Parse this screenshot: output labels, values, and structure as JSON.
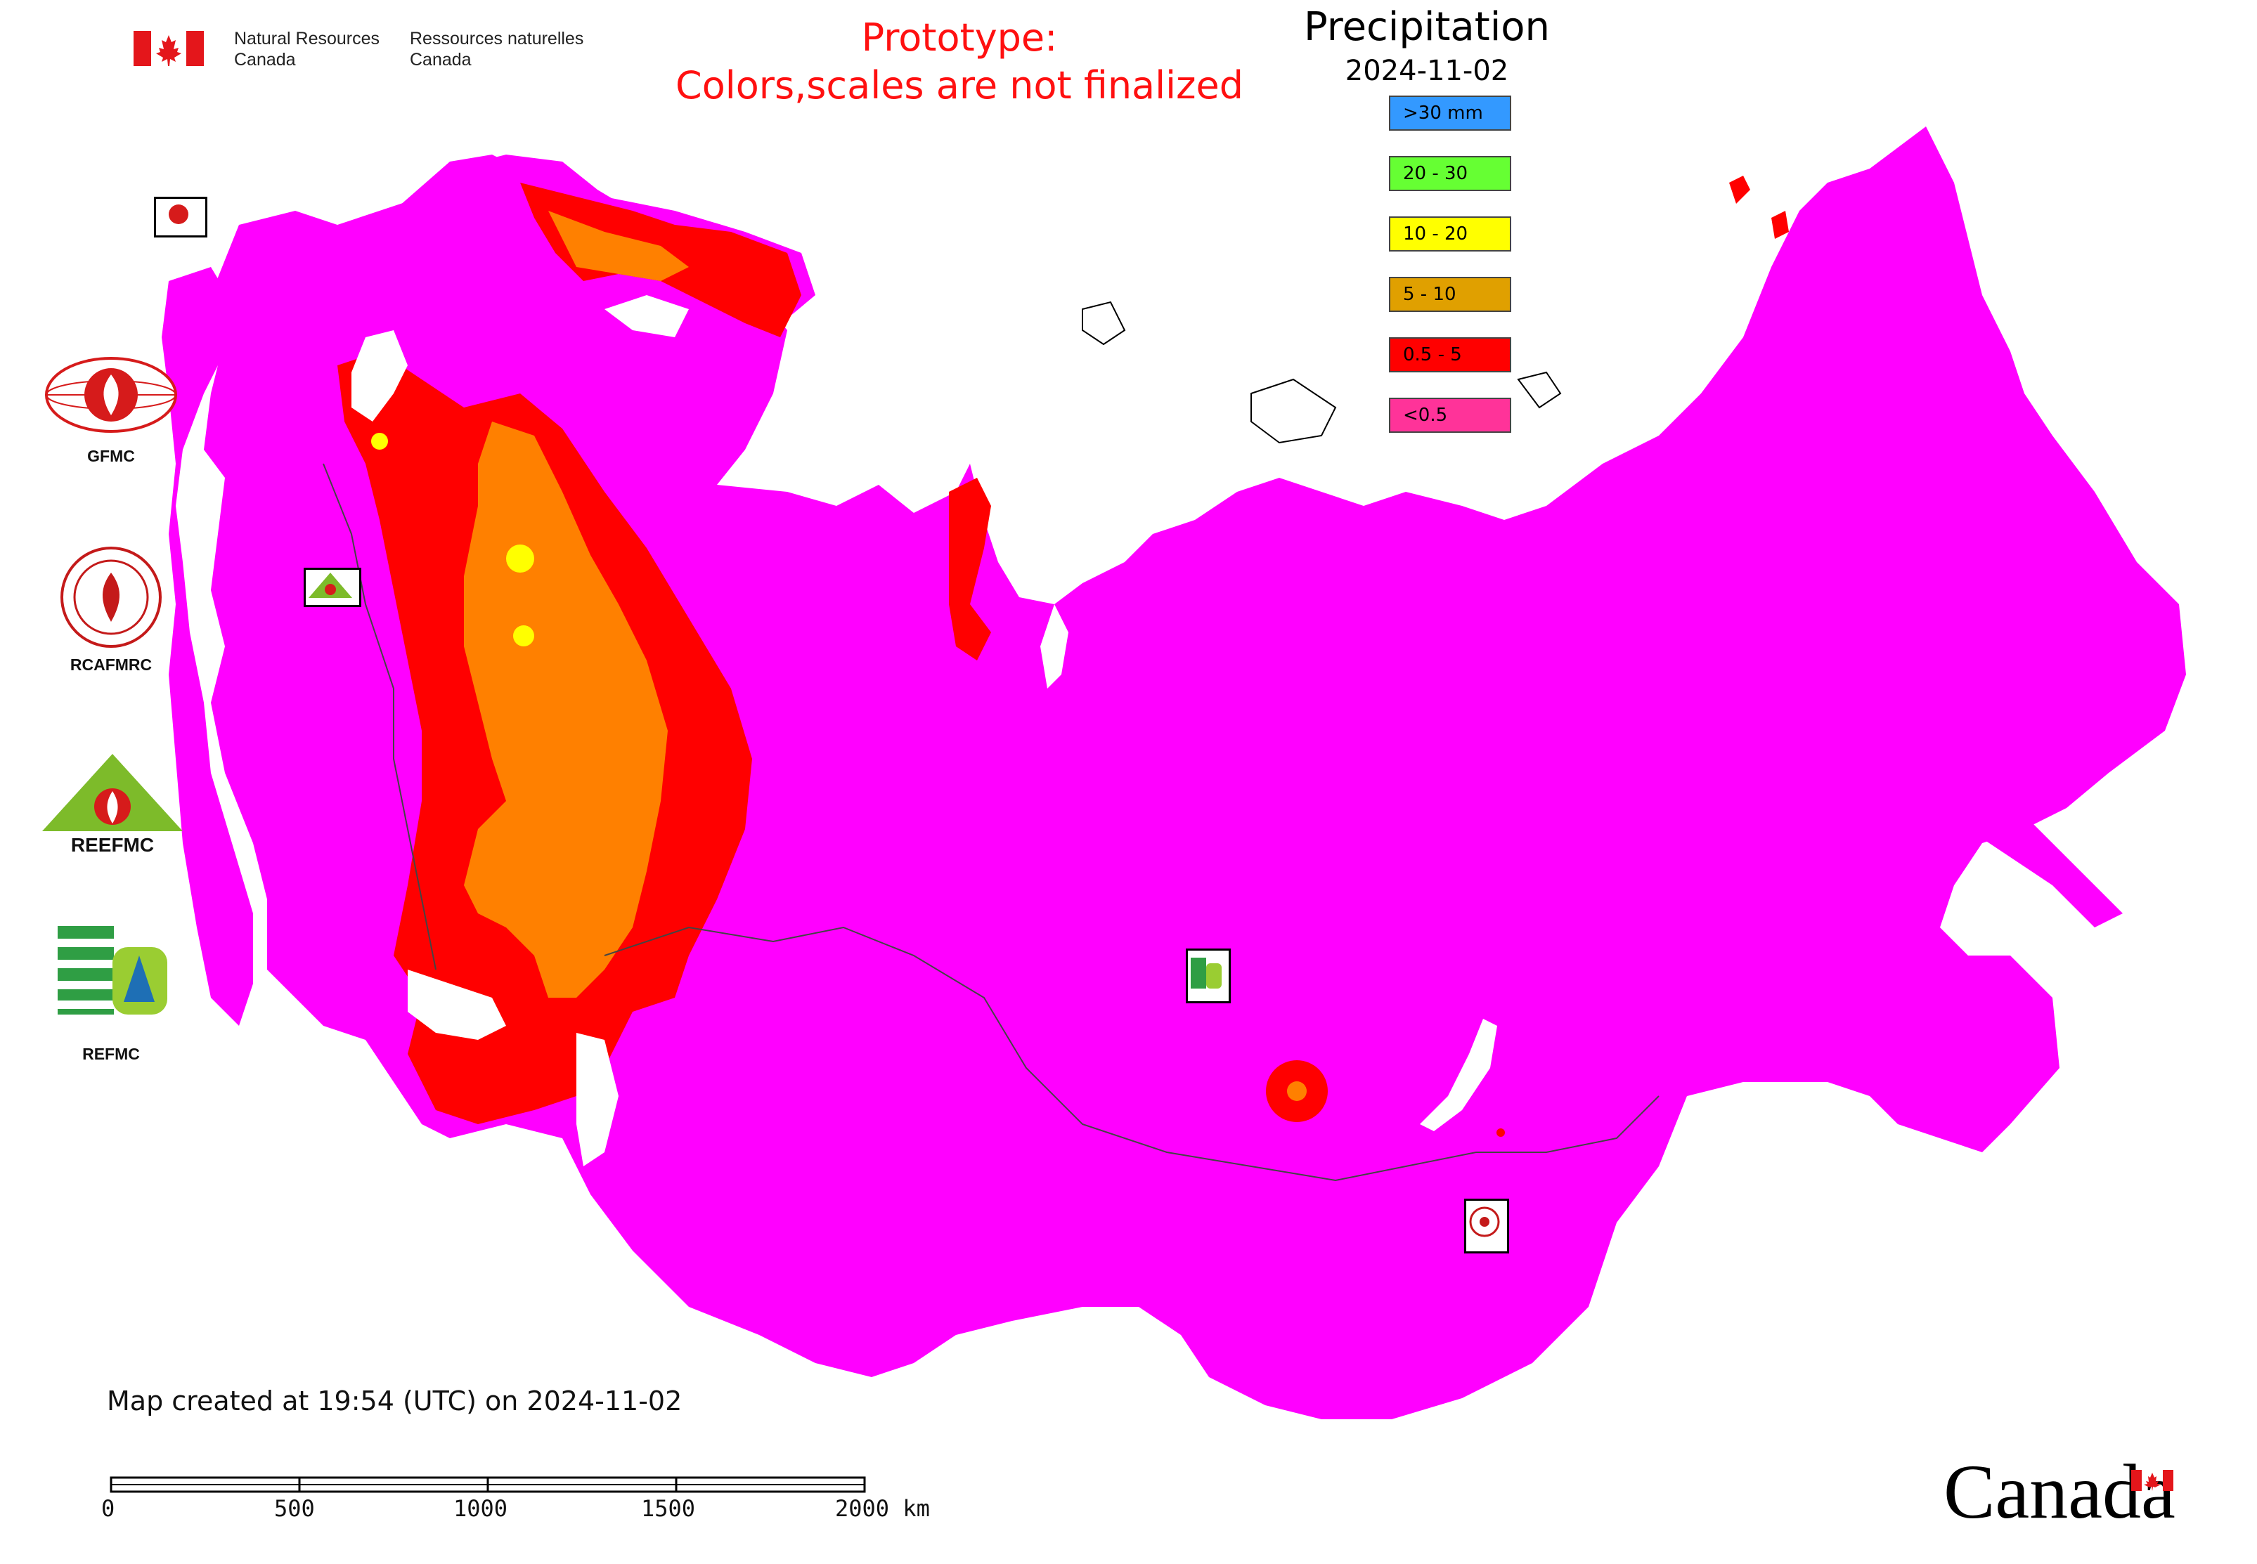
{
  "header": {
    "agency_en_line1": "Natural Resources",
    "agency_en_line2": "Canada",
    "agency_fr_line1": "Ressources naturelles",
    "agency_fr_line2": "Canada",
    "prototype_line1": "Prototype:",
    "prototype_line2": "Colors,scales are not finalized"
  },
  "legend": {
    "title": "Precipitation",
    "date": "2024-11-02",
    "classes": [
      {
        "label": ">30 mm",
        "color": "#3399ff"
      },
      {
        "label": "20 - 30",
        "color": "#66ff33"
      },
      {
        "label": "10 - 20",
        "color": "#ffff00"
      },
      {
        "label": "5 - 10",
        "color": "#e0a000"
      },
      {
        "label": "0.5 - 5",
        "color": "#ff0000"
      },
      {
        "label": "<0.5",
        "color": "#ff3399"
      }
    ]
  },
  "map_colors": {
    "dry": "#ff00ff",
    "light": "#ff0000",
    "moderate": "#ff8000",
    "heavy": "#ffff00",
    "water": "#ffffff"
  },
  "agencies": [
    {
      "name": "GFMC"
    },
    {
      "name": "RCAFMRC"
    },
    {
      "name": "REEFMC",
      "logo_text": "REEFMC"
    },
    {
      "name": "REFMC"
    }
  ],
  "footer": {
    "created": "Map created at 19:54 (UTC) on 2024-11-02",
    "scale_labels": [
      "0",
      "500",
      "1000",
      "1500",
      "2000 km"
    ],
    "wordmark": "Canada"
  },
  "icons": [
    "canada-flag-icon",
    "gfmc-logo-icon",
    "rcafmrc-logo-icon",
    "reefmc-logo-icon",
    "refmc-logo-icon",
    "canada-wordmark-flag-icon"
  ]
}
